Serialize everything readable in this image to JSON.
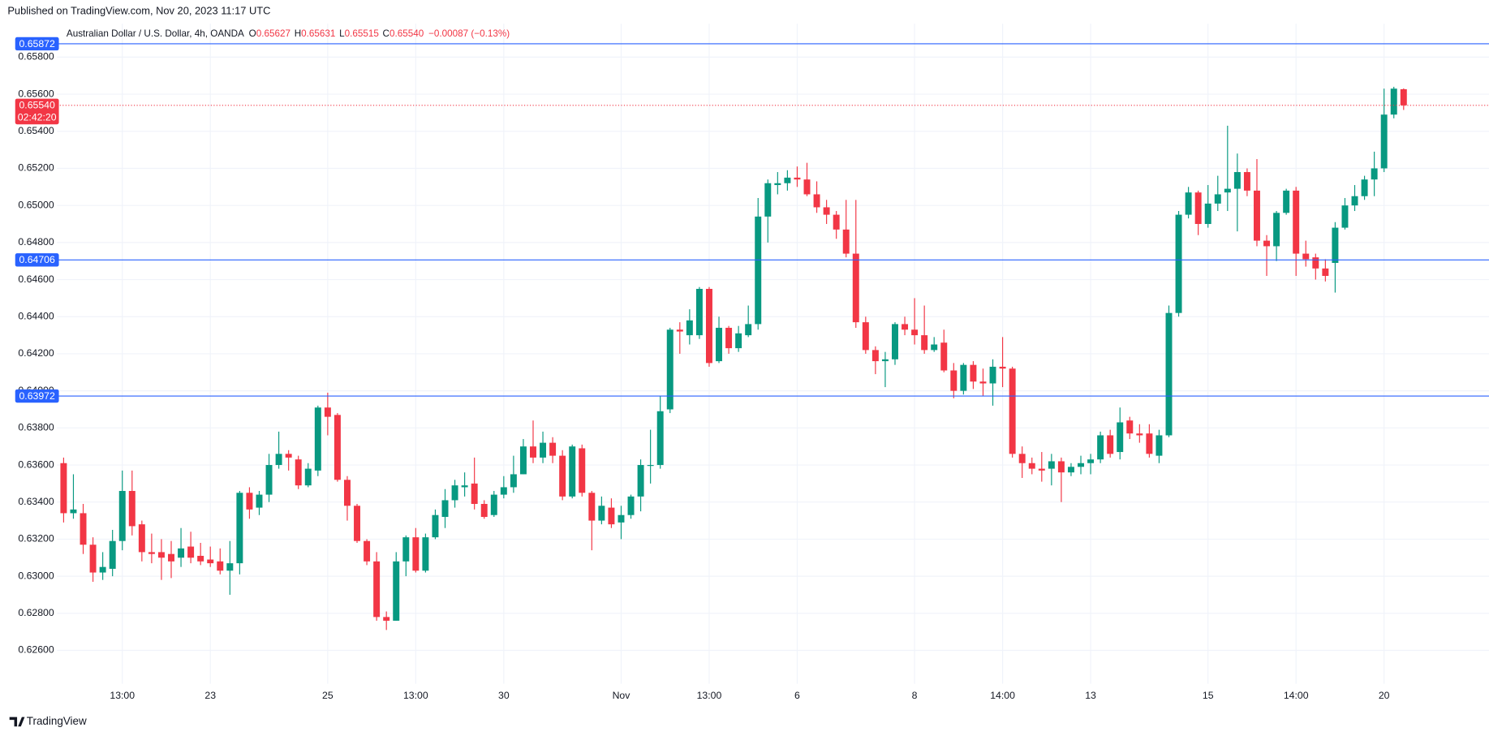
{
  "header": {
    "text": "Published on TradingView.com, Nov 20, 2023 11:17 UTC"
  },
  "footer": {
    "logo": "TradingView"
  },
  "chart_data": {
    "type": "candlestick",
    "title": "Australian Dollar / U.S. Dollar, 4h, OANDA",
    "legend": {
      "prefixes": [
        "O",
        "H",
        "L",
        "C"
      ],
      "values": [
        "0.65627",
        "0.65631",
        "0.65515",
        "0.65540"
      ],
      "change": "−0.00087 (−0.13%)"
    },
    "categories": [
      null,
      null,
      null,
      null,
      null,
      null,
      "13:00",
      null,
      null,
      null,
      null,
      null,
      null,
      null,
      null,
      "23",
      null,
      null,
      null,
      null,
      null,
      null,
      null,
      null,
      null,
      null,
      null,
      "25",
      null,
      null,
      null,
      null,
      null,
      null,
      null,
      null,
      "13:00",
      null,
      null,
      null,
      null,
      null,
      null,
      null,
      null,
      "30",
      null,
      null,
      null,
      null,
      null,
      null,
      null,
      null,
      null,
      null,
      null,
      "Nov",
      null,
      null,
      null,
      null,
      null,
      null,
      null,
      null,
      "13:00",
      null,
      null,
      null,
      null,
      null,
      null,
      null,
      null,
      "6",
      null,
      null,
      null,
      null,
      null,
      null,
      null,
      null,
      null,
      null,
      null,
      "8",
      null,
      null,
      null,
      null,
      null,
      null,
      null,
      null,
      "14:00",
      null,
      null,
      null,
      null,
      null,
      null,
      null,
      null,
      "13",
      null,
      null,
      null,
      null,
      null,
      null,
      null,
      null,
      null,
      null,
      null,
      "15",
      null,
      null,
      null,
      null,
      null,
      null,
      null,
      null,
      "14:00",
      null,
      null,
      null,
      null,
      null,
      null,
      null,
      null,
      "20",
      null,
      null
    ],
    "open": [
      0.6361,
      0.6334,
      0.6334,
      0.6317,
      0.6302,
      0.6304,
      0.6319,
      0.6346,
      0.6328,
      0.6313,
      0.6313,
      0.6312,
      0.631,
      0.6316,
      0.6311,
      0.6309,
      0.6308,
      0.6303,
      0.6307,
      0.6345,
      0.6337,
      0.6344,
      0.636,
      0.6366,
      0.6363,
      0.6349,
      0.6357,
      0.6391,
      0.6387,
      0.6352,
      0.6338,
      0.6319,
      0.6308,
      0.6278,
      0.6276,
      0.6308,
      0.6321,
      0.6303,
      0.6321,
      0.6332,
      0.6341,
      0.6348,
      0.635,
      0.6339,
      0.6333,
      0.6344,
      0.6348,
      0.6355,
      0.637,
      0.6364,
      0.6372,
      0.6365,
      0.6343,
      0.6369,
      0.6345,
      0.633,
      0.6337,
      0.6329,
      0.6333,
      0.6343,
      0.636,
      0.636,
      0.639,
      0.6433,
      0.643,
      0.643,
      0.6455,
      0.6416,
      0.6434,
      0.6423,
      0.643,
      0.6436,
      0.6494,
      0.6511,
      0.6512,
      0.6515,
      0.6514,
      0.6506,
      0.6499,
      0.6495,
      0.6487,
      0.6474,
      0.6437,
      0.6422,
      0.6416,
      0.6417,
      0.6436,
      0.6433,
      0.643,
      0.6422,
      0.6426,
      0.6411,
      0.64,
      0.6414,
      0.6405,
      0.6404,
      0.6413,
      0.6412,
      0.6366,
      0.6361,
      0.6358,
      0.6358,
      0.6362,
      0.6356,
      0.6359,
      0.6361,
      0.6363,
      0.6376,
      0.6367,
      0.6384,
      0.6377,
      0.6377,
      0.6365,
      0.6376,
      0.6442,
      0.6495,
      0.6507,
      0.649,
      0.6501,
      0.6507,
      0.6509,
      0.6518,
      0.6508,
      0.6481,
      0.6478,
      0.6496,
      0.6508,
      0.6474,
      0.6472,
      0.6466,
      0.6469,
      0.6488,
      0.65,
      0.6505,
      0.6514,
      0.652,
      0.6549,
      0.65627
    ],
    "high": [
      0.6364,
      0.6355,
      0.6339,
      0.6321,
      0.6313,
      0.6325,
      0.6357,
      0.6357,
      0.633,
      0.6323,
      0.632,
      0.6319,
      0.6326,
      0.6324,
      0.6318,
      0.6316,
      0.6315,
      0.6319,
      0.6346,
      0.6348,
      0.6346,
      0.6366,
      0.6378,
      0.6368,
      0.6365,
      0.6361,
      0.6392,
      0.6399,
      0.6388,
      0.6354,
      0.6339,
      0.632,
      0.6313,
      0.6281,
      0.6313,
      0.6322,
      0.6326,
      0.6323,
      0.6336,
      0.6347,
      0.6352,
      0.6356,
      0.6364,
      0.6341,
      0.6346,
      0.6354,
      0.6365,
      0.6374,
      0.6384,
      0.6378,
      0.6375,
      0.6368,
      0.6371,
      0.6371,
      0.6346,
      0.6343,
      0.6342,
      0.6338,
      0.6344,
      0.6363,
      0.6379,
      0.6397,
      0.6434,
      0.6437,
      0.6444,
      0.6456,
      0.6456,
      0.644,
      0.6435,
      0.6435,
      0.6446,
      0.6504,
      0.6514,
      0.6518,
      0.6519,
      0.6521,
      0.6523,
      0.6513,
      0.6503,
      0.6497,
      0.6503,
      0.6503,
      0.644,
      0.6424,
      0.6421,
      0.6437,
      0.644,
      0.645,
      0.6446,
      0.6429,
      0.6433,
      0.6415,
      0.6415,
      0.6416,
      0.6412,
      0.6417,
      0.6429,
      0.6413,
      0.637,
      0.6364,
      0.6367,
      0.6366,
      0.6364,
      0.6361,
      0.6365,
      0.6366,
      0.6378,
      0.6379,
      0.6391,
      0.6386,
      0.6382,
      0.6382,
      0.6379,
      0.6446,
      0.6497,
      0.651,
      0.6508,
      0.6511,
      0.6516,
      0.6543,
      0.6528,
      0.652,
      0.6525,
      0.6484,
      0.6497,
      0.6509,
      0.651,
      0.6481,
      0.6474,
      0.6471,
      0.6491,
      0.6504,
      0.6511,
      0.6516,
      0.6529,
      0.6563,
      0.6564,
      0.65631
    ],
    "low": [
      0.6329,
      0.6331,
      0.6312,
      0.6297,
      0.6298,
      0.63,
      0.6314,
      0.6322,
      0.6308,
      0.6307,
      0.6298,
      0.6299,
      0.6305,
      0.6307,
      0.6306,
      0.6305,
      0.6301,
      0.629,
      0.6301,
      0.6331,
      0.6333,
      0.634,
      0.6358,
      0.6357,
      0.6347,
      0.6348,
      0.6354,
      0.6376,
      0.6351,
      0.633,
      0.6318,
      0.6306,
      0.6276,
      0.6271,
      0.6276,
      0.63,
      0.6302,
      0.6302,
      0.632,
      0.6326,
      0.6337,
      0.6343,
      0.6336,
      0.6331,
      0.6332,
      0.6342,
      0.6345,
      0.6355,
      0.6361,
      0.6361,
      0.6361,
      0.6341,
      0.6342,
      0.6343,
      0.6314,
      0.6328,
      0.6326,
      0.632,
      0.6331,
      0.6335,
      0.635,
      0.6358,
      0.6388,
      0.642,
      0.6425,
      0.6428,
      0.6413,
      0.6415,
      0.642,
      0.6421,
      0.6429,
      0.6433,
      0.648,
      0.6506,
      0.6508,
      0.651,
      0.6505,
      0.6496,
      0.649,
      0.6482,
      0.6472,
      0.6434,
      0.642,
      0.6409,
      0.6402,
      0.6414,
      0.643,
      0.6425,
      0.642,
      0.6421,
      0.641,
      0.6396,
      0.6398,
      0.6401,
      0.6397,
      0.6392,
      0.6402,
      0.6364,
      0.6353,
      0.6355,
      0.6351,
      0.6349,
      0.634,
      0.6354,
      0.6355,
      0.6355,
      0.6361,
      0.6364,
      0.6363,
      0.6374,
      0.6372,
      0.6364,
      0.6361,
      0.6375,
      0.644,
      0.6493,
      0.6484,
      0.6488,
      0.6497,
      0.6497,
      0.6486,
      0.6505,
      0.6478,
      0.6462,
      0.647,
      0.6495,
      0.6462,
      0.6467,
      0.646,
      0.6459,
      0.6453,
      0.6487,
      0.6497,
      0.6503,
      0.6505,
      0.6518,
      0.6547,
      0.65515
    ],
    "close": [
      0.6334,
      0.6336,
      0.6317,
      0.6302,
      0.6305,
      0.6319,
      0.6346,
      0.6327,
      0.6313,
      0.6312,
      0.631,
      0.6308,
      0.6315,
      0.631,
      0.6308,
      0.6307,
      0.6303,
      0.6307,
      0.6345,
      0.6336,
      0.6344,
      0.636,
      0.6366,
      0.6364,
      0.6349,
      0.6358,
      0.6391,
      0.6386,
      0.6352,
      0.6338,
      0.6319,
      0.6308,
      0.6278,
      0.6276,
      0.6308,
      0.6321,
      0.6303,
      0.6321,
      0.6333,
      0.6341,
      0.6349,
      0.6349,
      0.6339,
      0.6332,
      0.6344,
      0.6348,
      0.6355,
      0.637,
      0.6364,
      0.6372,
      0.6365,
      0.6343,
      0.637,
      0.6345,
      0.633,
      0.6338,
      0.6328,
      0.6333,
      0.6343,
      0.636,
      0.636,
      0.6389,
      0.6433,
      0.6432,
      0.6438,
      0.6455,
      0.6415,
      0.6434,
      0.6423,
      0.6431,
      0.6436,
      0.6494,
      0.6512,
      0.6512,
      0.6515,
      0.6514,
      0.6506,
      0.6499,
      0.6495,
      0.6487,
      0.6474,
      0.6437,
      0.6422,
      0.6416,
      0.6417,
      0.6436,
      0.6433,
      0.643,
      0.6422,
      0.6425,
      0.6411,
      0.64,
      0.6414,
      0.6405,
      0.6404,
      0.6413,
      0.6412,
      0.6366,
      0.6361,
      0.6358,
      0.6357,
      0.6362,
      0.6356,
      0.6359,
      0.6361,
      0.6363,
      0.6376,
      0.6366,
      0.6383,
      0.6377,
      0.6376,
      0.6366,
      0.6376,
      0.6442,
      0.6495,
      0.6507,
      0.649,
      0.6501,
      0.6506,
      0.6509,
      0.6518,
      0.6508,
      0.6481,
      0.6478,
      0.6496,
      0.6508,
      0.6474,
      0.6471,
      0.6466,
      0.6462,
      0.6488,
      0.65,
      0.6505,
      0.6514,
      0.652,
      0.6549,
      0.6563,
      0.6554
    ],
    "up_color": "#089981",
    "down_color": "#f23645",
    "ylim": [
      0.6242,
      0.6598
    ],
    "yticks": [
      {
        "value": 0.626,
        "label": "0.62600"
      },
      {
        "value": 0.628,
        "label": "0.62800"
      },
      {
        "value": 0.63,
        "label": "0.63000"
      },
      {
        "value": 0.632,
        "label": "0.63200"
      },
      {
        "value": 0.634,
        "label": "0.63400"
      },
      {
        "value": 0.636,
        "label": "0.63600"
      },
      {
        "value": 0.638,
        "label": "0.63800"
      },
      {
        "value": 0.64,
        "label": "0.64000"
      },
      {
        "value": 0.642,
        "label": "0.64200"
      },
      {
        "value": 0.644,
        "label": "0.64400"
      },
      {
        "value": 0.646,
        "label": "0.64600"
      },
      {
        "value": 0.648,
        "label": "0.64800"
      },
      {
        "value": 0.65,
        "label": "0.65000"
      },
      {
        "value": 0.652,
        "label": "0.65200"
      },
      {
        "value": 0.654,
        "label": "0.65400"
      },
      {
        "value": 0.656,
        "label": "0.65600"
      },
      {
        "value": 0.658,
        "label": "0.65800"
      }
    ],
    "grid": true,
    "price_lines": [
      0.65872,
      0.64706,
      0.63972
    ],
    "price_line_color": "#2962ff",
    "last_price": {
      "value": 0.6554,
      "label": "0.65540",
      "countdown": "02:42:20"
    }
  }
}
